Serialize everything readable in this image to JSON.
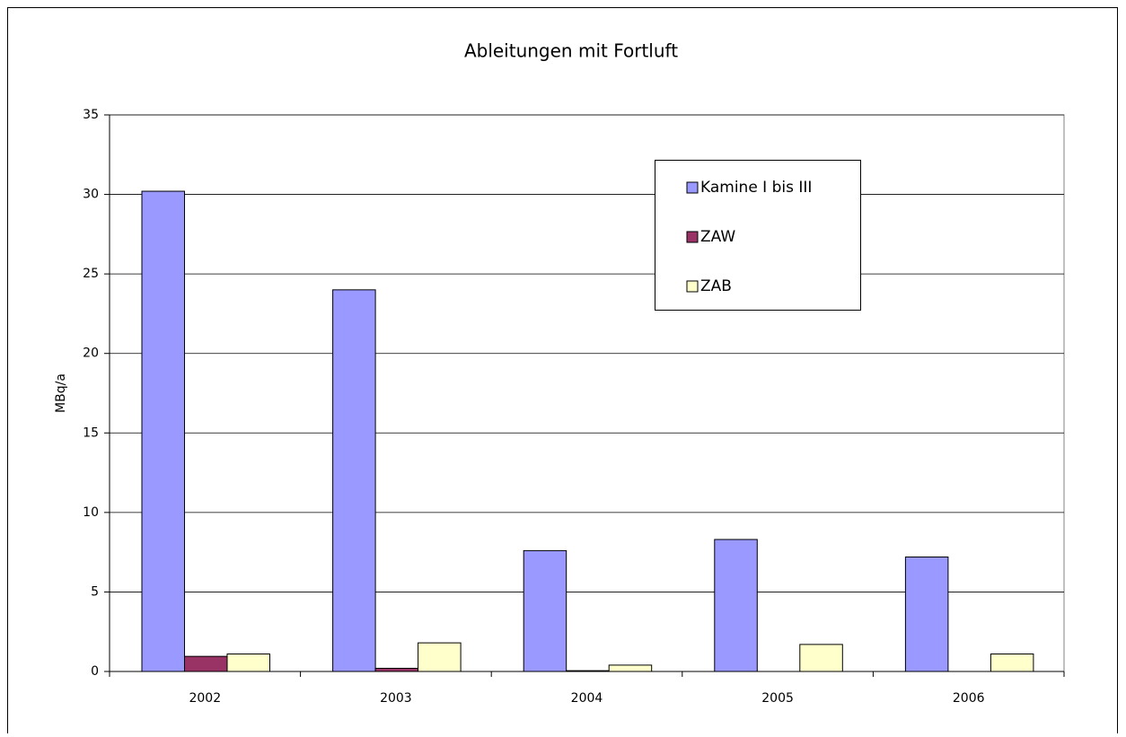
{
  "chart_data": {
    "type": "bar",
    "title": "Ableitungen mit Fortluft",
    "y_label": "MBq/a",
    "categories": [
      "2002",
      "2003",
      "2004",
      "2005",
      "2006"
    ],
    "series": [
      {
        "name": "Kamine I bis III",
        "color": "#9999ff",
        "values": [
          30.2,
          24.0,
          7.6,
          8.3,
          7.2
        ]
      },
      {
        "name": "ZAW",
        "color": "#993366",
        "values": [
          0.95,
          0.2,
          0.05,
          0,
          0
        ]
      },
      {
        "name": "ZAB",
        "color": "#ffffcc",
        "values": [
          1.1,
          1.8,
          0.4,
          1.7,
          1.1
        ]
      }
    ],
    "ylim": [
      0,
      35
    ],
    "yticks": [
      0,
      5,
      10,
      15,
      20,
      25,
      30,
      35
    ],
    "grid": true,
    "legend": "upper right"
  }
}
